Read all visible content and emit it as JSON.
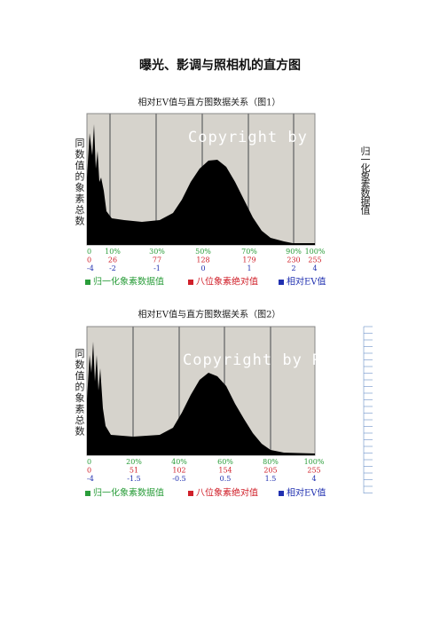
{
  "title": "曝光、影调与照相机的直方图",
  "figures": [
    {
      "caption": "相对EV值与直方图数据关系（图1）",
      "y_label": "同数值的象素总数",
      "watermark": "Copyright by Rive",
      "normalized": [
        "0",
        "10%",
        "30%",
        "50%",
        "70%",
        "90%",
        "100%"
      ],
      "absolute": [
        "0",
        "26",
        "77",
        "128",
        "179",
        "230",
        "255"
      ],
      "ev": [
        "-4",
        "-2",
        "-1",
        "0",
        "1",
        "2",
        "4"
      ],
      "legend": [
        "归一化象素数据值",
        "八位象素绝对值",
        "相对EV值"
      ]
    },
    {
      "caption": "相对EV值与直方图数据关系（图2）",
      "y_label": "同数值的象素总数",
      "watermark": "Copyright by Rive",
      "normalized": [
        "0",
        "20%",
        "40%",
        "60%",
        "80%",
        "100%"
      ],
      "absolute": [
        "0",
        "51",
        "102",
        "154",
        "205",
        "255"
      ],
      "ev": [
        "-4",
        "-1.5",
        "-0.5",
        "0.5",
        "1.5",
        "4"
      ],
      "legend": [
        "归一化象素数据值",
        "八位象素绝对值",
        "相对EV值"
      ]
    }
  ],
  "side_note": "归一化象素数据值"
}
